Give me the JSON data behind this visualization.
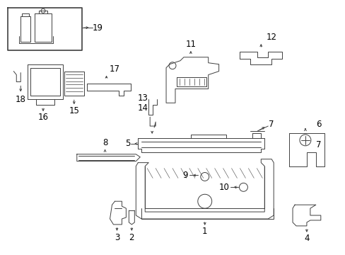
{
  "bg_color": "#ffffff",
  "line_color": "#404040",
  "fig_width": 4.89,
  "fig_height": 3.6,
  "dpi": 100,
  "lw": 0.7,
  "fs": 7.5
}
